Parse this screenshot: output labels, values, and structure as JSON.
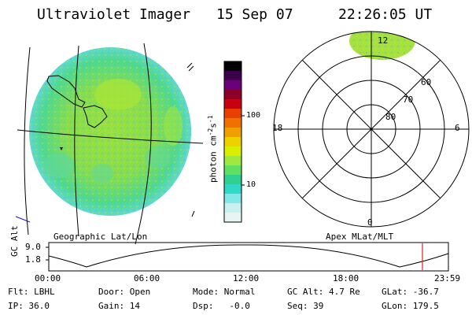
{
  "header": {
    "instrument": "Ultraviolet Imager",
    "date": "15 Sep 07",
    "time": "22:26:05 UT"
  },
  "colorbar": {
    "label_main": "photon cm",
    "label_sup1": "-2",
    "label_mid": "s",
    "label_sup2": "-1",
    "ticks": [
      "100",
      "10"
    ],
    "colors": [
      "#000000",
      "#3a004a",
      "#6a007a",
      "#8a0028",
      "#c80010",
      "#e84000",
      "#f07000",
      "#f0a000",
      "#f0d000",
      "#d8f000",
      "#a0e840",
      "#60e060",
      "#30d090",
      "#30d8c8",
      "#80e8e8",
      "#c8f0f0",
      "#e8f4f4"
    ]
  },
  "geo_panel": {
    "label": "Geographic Lat/Lon"
  },
  "polar_panel": {
    "label": "Apex  MLat/MLT",
    "mlt_labels": [
      "12",
      "18",
      "6",
      "0"
    ],
    "lat_labels": [
      "60",
      "70",
      "80"
    ]
  },
  "timeline": {
    "axis_label": "GC Alt",
    "y_ticks": [
      "9.0",
      "1.8"
    ],
    "x_ticks": [
      "00:00",
      "06:00",
      "12:00",
      "18:00",
      "23:59"
    ]
  },
  "info": {
    "row1": [
      "Flt: LBHL",
      "Door: Open",
      "Mode: Normal",
      "GC Alt: 4.7 Re",
      "GLat: -36.7"
    ],
    "row2": [
      "IP: 36.0",
      "Gain: 14",
      "Dsp:   -0.0",
      "Seq: 39",
      "GLon: 179.5"
    ]
  }
}
